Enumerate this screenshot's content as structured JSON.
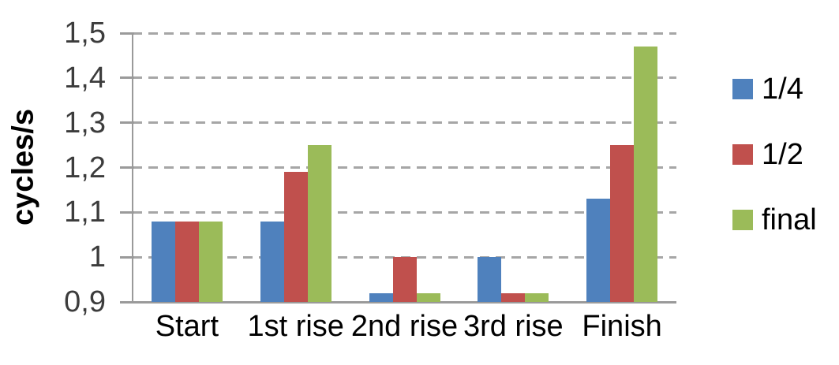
{
  "chart_data": {
    "type": "bar",
    "title": "",
    "xlabel": "",
    "ylabel": "cycles/s",
    "categories": [
      "Start",
      "1st rise",
      "2nd rise",
      "3rd rise",
      "Finish"
    ],
    "series": [
      {
        "name": "1/4",
        "color": "#4F81BD",
        "values": [
          1.08,
          1.08,
          0.92,
          1.0,
          1.13
        ]
      },
      {
        "name": "1/2",
        "color": "#C0504D",
        "values": [
          1.08,
          1.19,
          1.0,
          0.92,
          1.25
        ]
      },
      {
        "name": "final",
        "color": "#9BBB59",
        "values": [
          1.08,
          1.25,
          0.92,
          0.92,
          1.47
        ]
      }
    ],
    "ylim": [
      0.9,
      1.5
    ],
    "yticks": {
      "values": [
        1.5,
        1.4,
        1.3,
        1.2,
        1.1,
        1.0,
        0.9
      ],
      "labels": [
        "1,5",
        "1,4",
        "1,3",
        "1,2",
        "1,1",
        "1",
        "0,9"
      ]
    },
    "grid": "horizontal dashed",
    "legend_position": "right"
  },
  "colors": {
    "grid": "#A6A6A6",
    "axis": "#9A9A9A",
    "tick_label": "#3C3C3C",
    "category_label": "#000000",
    "background": "#FFFFFF"
  }
}
